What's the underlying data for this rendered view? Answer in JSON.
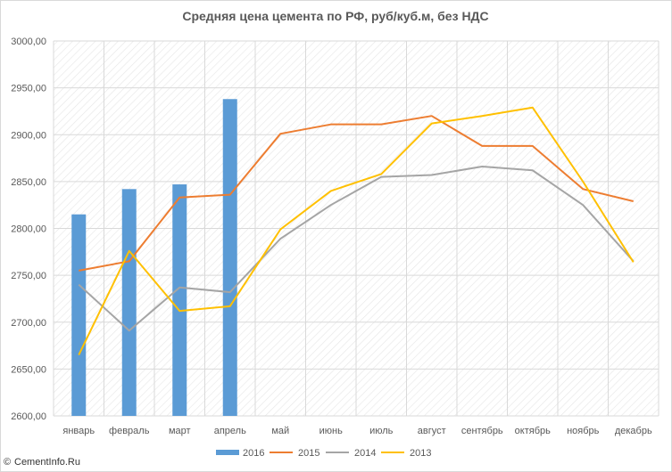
{
  "chart_data": {
    "type": "bar+line",
    "title": "Средняя цена цемента по РФ, руб/куб.м, без НДС",
    "categories": [
      "январь",
      "февраль",
      "март",
      "апрель",
      "май",
      "июнь",
      "июль",
      "август",
      "сентябрь",
      "октябрь",
      "ноябрь",
      "декабрь"
    ],
    "ylim": [
      2600,
      3000
    ],
    "yticks": [
      "2600,00",
      "2650,00",
      "2700,00",
      "2750,00",
      "2800,00",
      "2850,00",
      "2900,00",
      "2950,00",
      "3000,00"
    ],
    "ytick_values": [
      2600,
      2650,
      2700,
      2750,
      2800,
      2850,
      2900,
      2950,
      3000
    ],
    "grid": true,
    "legend_position": "bottom",
    "series": [
      {
        "name": "2016",
        "kind": "bar",
        "color": "#5b9bd5",
        "values": [
          2815,
          2842,
          2847,
          2938,
          null,
          null,
          null,
          null,
          null,
          null,
          null,
          null
        ]
      },
      {
        "name": "2015",
        "kind": "line",
        "color": "#ed7d31",
        "values": [
          2755,
          2765,
          2833,
          2836,
          2901,
          2911,
          2911,
          2920,
          2888,
          2888,
          2842,
          2829
        ]
      },
      {
        "name": "2014",
        "kind": "line",
        "color": "#a5a5a5",
        "values": [
          2740,
          2691,
          2737,
          2732,
          2789,
          2825,
          2855,
          2857,
          2866,
          2862,
          2825,
          2765
        ]
      },
      {
        "name": "2013",
        "kind": "line",
        "color": "#ffc000",
        "values": [
          2665,
          2776,
          2712,
          2717,
          2799,
          2840,
          2858,
          2912,
          2920,
          2929,
          2850,
          2764
        ]
      }
    ]
  },
  "watermark": {
    "text": "CementInfo.Ru",
    "icon": "copyright-icon",
    "symbol": "©"
  }
}
